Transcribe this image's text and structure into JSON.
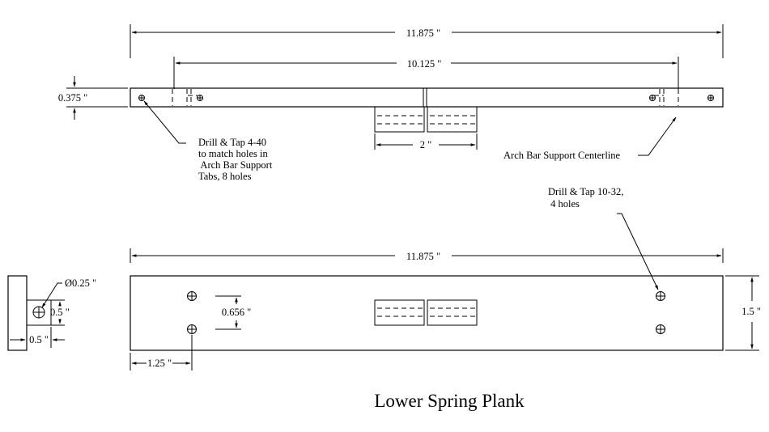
{
  "title": "Lower Spring Plank",
  "top_view": {
    "overall_length": "11.875 \"",
    "hole_spacing": "10.125 \"",
    "thickness": "0.375 \"",
    "tab_width": "2 \"",
    "note_drill_4_40": [
      "Drill & Tap 4-40",
      "to match holes in",
      " Arch Bar Support",
      "Tabs, 8 holes"
    ],
    "note_centerline": "Arch Bar Support Centerline"
  },
  "front_view": {
    "overall_length": "11.875 \"",
    "height": "1.5 \"",
    "hole_spacing_vertical": "0.656 \"",
    "hole_offset": "1.25 \"",
    "note_drill_10_32": [
      "Drill & Tap 10-32,",
      " 4 holes"
    ]
  },
  "end_view": {
    "hole_diameter": "Ø0.25 \"",
    "hole_height": "0.5 \"",
    "hole_offset": "0.5 \""
  }
}
